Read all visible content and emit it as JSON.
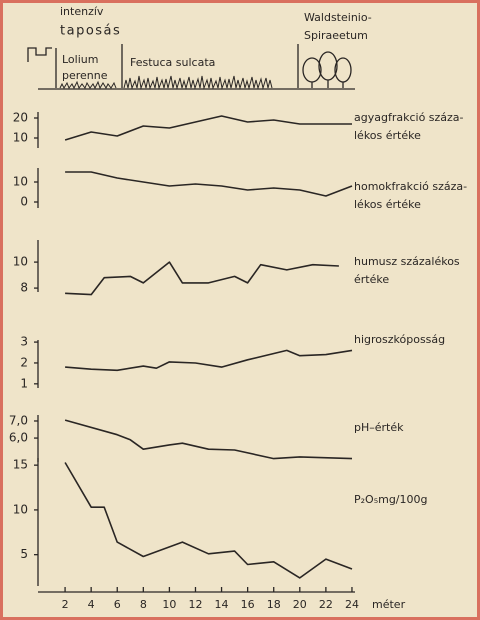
{
  "header": {
    "trampling": [
      "intenzív",
      "taposás"
    ],
    "zone1": [
      "Lolium",
      "perenne"
    ],
    "zone2": "Festuca sulcata",
    "zone3": [
      "Waldsteinio-",
      "Spiraeetum"
    ]
  },
  "chart_data": [
    {
      "type": "line",
      "label": [
        "agyagfrakció száza-",
        "lékos értéke"
      ],
      "x": [
        2,
        4,
        6,
        8,
        10,
        12,
        14,
        16,
        18,
        20,
        22,
        24
      ],
      "values": [
        9,
        13,
        11,
        16,
        15,
        18,
        21,
        18,
        19,
        17,
        17,
        17
      ],
      "xlim": [
        0,
        25
      ],
      "ylim": [
        5,
        23
      ],
      "yticks": [
        10,
        20
      ],
      "color": "#2a2624"
    },
    {
      "type": "line",
      "label": [
        "homokfrakció száza-",
        "lékos értéke"
      ],
      "x": [
        2,
        4,
        6,
        8,
        10,
        12,
        14,
        16,
        18,
        20,
        22,
        24
      ],
      "values": [
        15,
        15,
        12,
        10,
        8,
        9,
        8,
        6,
        7,
        6,
        3,
        8
      ],
      "xlim": [
        0,
        25
      ],
      "ylim": [
        -3,
        17
      ],
      "yticks": [
        0,
        10
      ],
      "color": "#2a2624"
    },
    {
      "type": "line",
      "label": [
        "humusz százalékos",
        "értéke"
      ],
      "x": [
        2,
        4,
        5,
        7,
        8,
        10,
        11,
        13,
        15,
        16,
        17,
        19,
        21,
        23
      ],
      "values": [
        7.6,
        7.5,
        8.8,
        8.9,
        8.4,
        10,
        8.4,
        8.4,
        8.9,
        8.4,
        9.8,
        9.4,
        9.8,
        9.7
      ],
      "xlim": [
        0,
        25
      ],
      "ylim": [
        7.7,
        11.7
      ],
      "yticks": [
        8,
        10
      ],
      "color": "#2a2624"
    },
    {
      "type": "line",
      "label": [
        "higroszkóposság"
      ],
      "x": [
        2,
        4,
        6,
        8,
        9,
        10,
        12,
        14,
        16,
        19,
        20,
        22,
        24
      ],
      "values": [
        1.8,
        1.7,
        1.65,
        1.85,
        1.75,
        2.05,
        2,
        1.8,
        2.15,
        2.6,
        2.35,
        2.4,
        2.6
      ],
      "xlim": [
        0,
        25
      ],
      "ylim": [
        0.8,
        3.1
      ],
      "yticks": [
        1,
        2,
        3
      ],
      "color": "#2a2624"
    },
    {
      "type": "line",
      "label": [
        "pH–érték"
      ],
      "x": [
        2,
        6,
        7,
        8,
        10,
        11,
        13,
        15,
        18,
        20,
        24
      ],
      "values": [
        7.05,
        6.2,
        5.9,
        5.35,
        5.6,
        5.7,
        5.35,
        5.3,
        4.8,
        4.9,
        4.8
      ],
      "xlim": [
        0,
        25
      ],
      "ylim": [
        4.6,
        7.35
      ],
      "yticks": [
        {
          "value": 6,
          "label": "6,0"
        },
        {
          "value": 7,
          "label": "7,0"
        }
      ],
      "color": "#2a2624"
    },
    {
      "type": "line",
      "label": [
        "P₂O₅mg/100g"
      ],
      "x": [
        2,
        4,
        5,
        6,
        8,
        11,
        13,
        15,
        16,
        18,
        20,
        22,
        24
      ],
      "values": [
        15.3,
        10.3,
        10.3,
        6.4,
        4.8,
        6.4,
        5.1,
        5.4,
        3.9,
        4.2,
        2.4,
        4.5,
        3.4
      ],
      "xlim": [
        0,
        25
      ],
      "ylim": [
        1.5,
        15.8
      ],
      "yticks": [
        5,
        10,
        15
      ],
      "xticks": [
        2,
        4,
        6,
        8,
        10,
        12,
        14,
        16,
        18,
        20,
        22,
        24
      ],
      "xlabel": "méter",
      "color": "#2a2624"
    }
  ]
}
